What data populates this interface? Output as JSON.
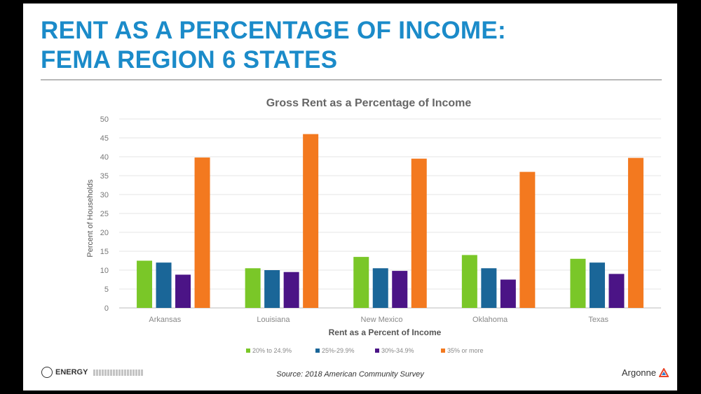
{
  "slide": {
    "title_line1": "RENT AS A PERCENTAGE OF INCOME:",
    "title_line2": "FEMA REGION 6 STATES",
    "source": "Source: 2018 American Community Survey",
    "doe_logo_text": "ENERGY",
    "argonne_text": "Argonne"
  },
  "colors": {
    "title": "#1b8bc9",
    "series": [
      "#7ac728",
      "#1a6698",
      "#4b1486",
      "#f3791f"
    ]
  },
  "chart_data": {
    "type": "bar",
    "title": "Gross Rent as a Percentage of Income",
    "xlabel": "Rent as a Percent of Income",
    "ylabel": "Percent of Households",
    "categories": [
      "Arkansas",
      "Louisiana",
      "New Mexico",
      "Oklahoma",
      "Texas"
    ],
    "series": [
      {
        "name": "20% to 24.9%",
        "values": [
          12.5,
          10.5,
          13.5,
          14,
          13
        ]
      },
      {
        "name": "25%-29.9%",
        "values": [
          12,
          10,
          10.5,
          10.5,
          12
        ]
      },
      {
        "name": "30%-34.9%",
        "values": [
          8.8,
          9.5,
          9.8,
          7.5,
          9
        ]
      },
      {
        "name": "35% or more",
        "values": [
          39.8,
          46,
          39.5,
          36,
          39.7
        ]
      }
    ],
    "ylim": [
      0,
      50
    ],
    "yticks": [
      0,
      5,
      10,
      15,
      20,
      25,
      30,
      35,
      40,
      45,
      50
    ],
    "grid": true,
    "legend": "bottom"
  }
}
